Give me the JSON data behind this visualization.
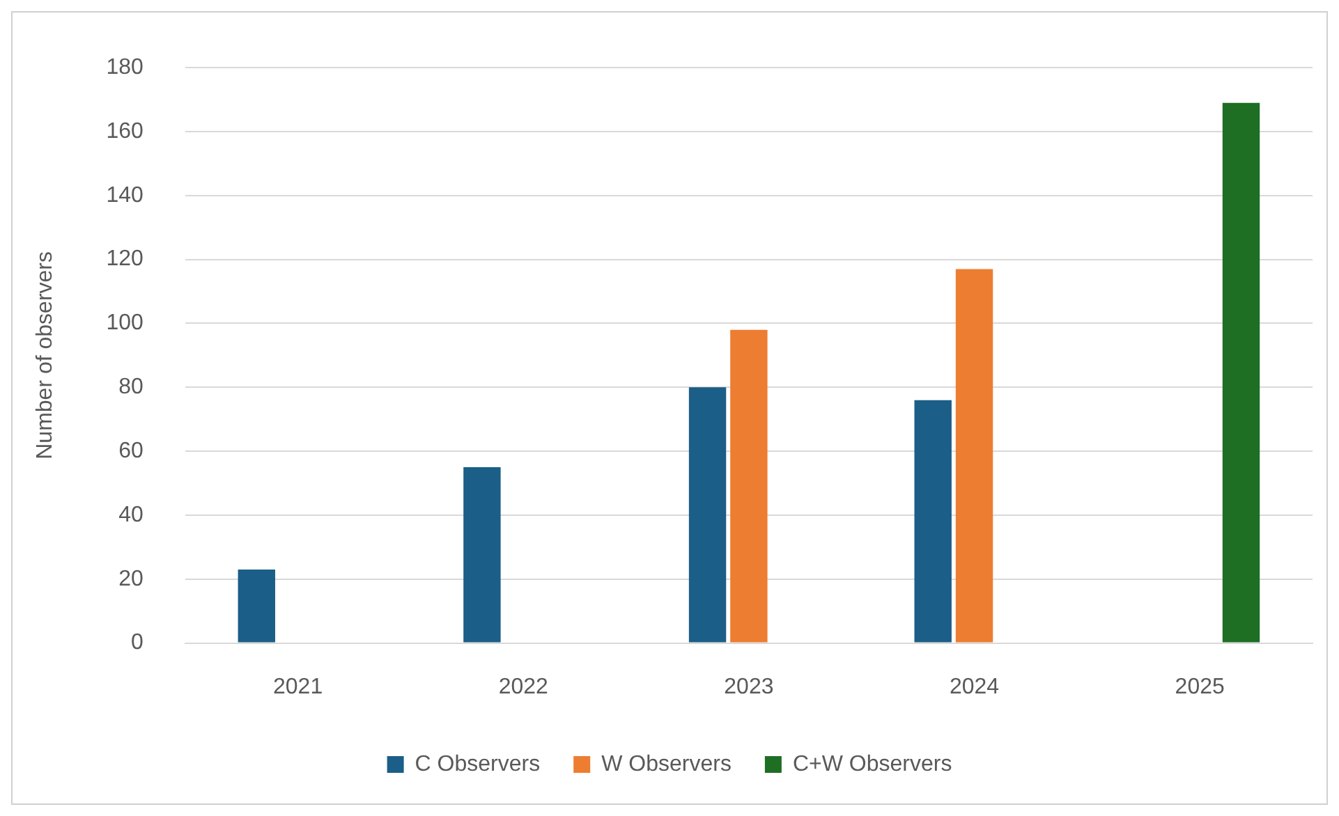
{
  "chart_data": {
    "type": "bar",
    "ylabel": "Number of observers",
    "categories": [
      "2021",
      "2022",
      "2023",
      "2024",
      "2025"
    ],
    "series": [
      {
        "name": "C Observers",
        "color": "#1b5e87",
        "values": [
          23,
          55,
          80,
          76,
          null
        ]
      },
      {
        "name": "W Observers",
        "color": "#ed7d31",
        "values": [
          null,
          null,
          98,
          117,
          null
        ]
      },
      {
        "name": "C+W Observers",
        "color": "#1e6e23",
        "values": [
          null,
          null,
          null,
          null,
          169
        ]
      }
    ],
    "ylim": [
      0,
      180
    ],
    "yticks": [
      0,
      20,
      40,
      60,
      80,
      100,
      120,
      140,
      160,
      180
    ],
    "grid": "y",
    "legend": "bottom"
  }
}
